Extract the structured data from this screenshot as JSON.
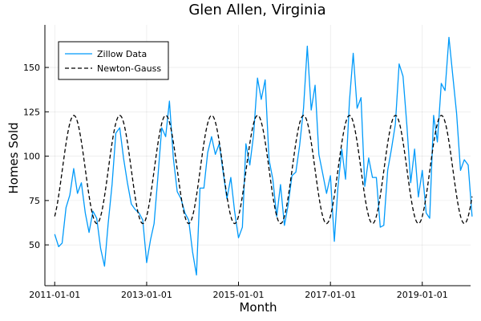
{
  "chart_data": {
    "type": "line",
    "title": "Glen Allen, Virginia",
    "xlabel": "Month",
    "ylabel": "Homes Sold",
    "x_start": "2011-01-01",
    "x_ticks": [
      "2011-01-01",
      "2013-01-01",
      "2015-01-01",
      "2017-01-01",
      "2019-01-01"
    ],
    "x_range": [
      "2010-10-15",
      "2020-01-20"
    ],
    "y_ticks": [
      50,
      75,
      100,
      125,
      150
    ],
    "ylim": [
      27,
      174
    ],
    "grid": true,
    "legend_position": "top-left",
    "series": [
      {
        "name": "Zillow Data",
        "color": "#009AFA",
        "style": "solid",
        "values": [
          56,
          49,
          51,
          71,
          78,
          93,
          79,
          85,
          68,
          57,
          69,
          65,
          48,
          38,
          62,
          84,
          113,
          116,
          99,
          85,
          73,
          70,
          68,
          64,
          40,
          53,
          62,
          89,
          116,
          111,
          131,
          99,
          80,
          76,
          68,
          64,
          46,
          33,
          82,
          82,
          102,
          111,
          101,
          107,
          91,
          76,
          88,
          69,
          54,
          60,
          107,
          95,
          112,
          144,
          132,
          143,
          98,
          87,
          66,
          84,
          61,
          73,
          89,
          91,
          106,
          127,
          162,
          126,
          140,
          101,
          90,
          79,
          89,
          52,
          82,
          104,
          87,
          131,
          158,
          127,
          133,
          83,
          99,
          88,
          88,
          60,
          61,
          92,
          104,
          118,
          152,
          145,
          117,
          85,
          104,
          77,
          92,
          68,
          65,
          123,
          108,
          141,
          137,
          167,
          145,
          124,
          92,
          98,
          95,
          66
        ]
      },
      {
        "name": "Newton-Gauss",
        "color": "#000000",
        "style": "dashed",
        "mean": 92.5,
        "amplitude": 30.5,
        "period_months": 12,
        "peak_month_offset": 5
      }
    ]
  }
}
